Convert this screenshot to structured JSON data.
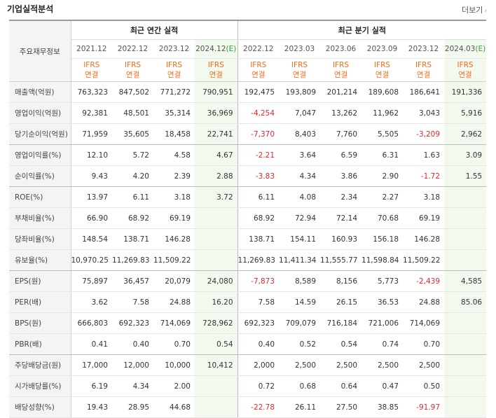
{
  "header": {
    "title": "기업실적분석",
    "more_label": "더보기",
    "more_icon": "chevron-right-icon"
  },
  "table": {
    "corner_label": "주요재무정보",
    "annual_group_label": "최근 연간 실적",
    "quarter_group_label": "최근 분기 실적",
    "annual_periods": [
      "2021.12",
      "2022.12",
      "2023.12",
      "2024.12"
    ],
    "annual_est_marker": "(E)",
    "quarter_periods": [
      "2022.12",
      "2023.03",
      "2023.06",
      "2023.09",
      "2023.12",
      "2024.03"
    ],
    "quarter_est_marker": "(E)",
    "std_line1": "IFRS",
    "std_line2": "연결",
    "rows": [
      {
        "label": "매출액(억원)",
        "values": [
          "763,323",
          "847,502",
          "771,272",
          "790,951",
          "192,475",
          "193,809",
          "201,214",
          "189,608",
          "186,641",
          "191,336"
        ]
      },
      {
        "label": "영업이익(억원)",
        "values": [
          "92,381",
          "48,501",
          "35,314",
          "36,969",
          "-4,254",
          "7,047",
          "13,262",
          "11,962",
          "3,043",
          "5,916"
        ]
      },
      {
        "label": "당기순이익(억원)",
        "values": [
          "71,959",
          "35,605",
          "18,458",
          "22,741",
          "-7,370",
          "8,403",
          "7,760",
          "5,505",
          "-3,209",
          "2,962"
        ]
      },
      {
        "label": "영업이익률(%)",
        "values": [
          "12.10",
          "5.72",
          "4.58",
          "4.67",
          "-2.21",
          "3.64",
          "6.59",
          "6.31",
          "1.63",
          "3.09"
        ]
      },
      {
        "label": "순이익률(%)",
        "values": [
          "9.43",
          "4.20",
          "2.39",
          "2.88",
          "-3.83",
          "4.34",
          "3.86",
          "2.90",
          "-1.72",
          "1.55"
        ]
      },
      {
        "label": "ROE(%)",
        "values": [
          "13.97",
          "6.11",
          "3.18",
          "3.72",
          "6.11",
          "4.08",
          "2.34",
          "2.27",
          "3.18",
          ""
        ]
      },
      {
        "label": "부채비율(%)",
        "values": [
          "66.90",
          "68.92",
          "69.19",
          "",
          "68.92",
          "72.94",
          "72.14",
          "70.68",
          "69.19",
          ""
        ]
      },
      {
        "label": "당좌비율(%)",
        "values": [
          "148.54",
          "138.71",
          "146.28",
          "",
          "138.71",
          "154.11",
          "160.93",
          "156.18",
          "146.28",
          ""
        ]
      },
      {
        "label": "유보율(%)",
        "values": [
          "10,970.25",
          "11,269.83",
          "11,509.22",
          "",
          "11,269.83",
          "11,411.34",
          "11,555.77",
          "11,598.84",
          "11,509.22",
          ""
        ]
      },
      {
        "label": "EPS(원)",
        "values": [
          "75,897",
          "36,457",
          "20,079",
          "24,080",
          "-7,873",
          "8,589",
          "8,156",
          "5,773",
          "-2,439",
          "4,585"
        ]
      },
      {
        "label": "PER(배)",
        "values": [
          "3.62",
          "7.58",
          "24.88",
          "16.20",
          "7.58",
          "14.59",
          "26.15",
          "36.53",
          "24.88",
          "85.06"
        ]
      },
      {
        "label": "BPS(원)",
        "values": [
          "666,803",
          "692,323",
          "714,069",
          "728,962",
          "692,323",
          "709,079",
          "716,184",
          "721,006",
          "714,069",
          ""
        ]
      },
      {
        "label": "PBR(배)",
        "values": [
          "0.41",
          "0.40",
          "0.70",
          "0.54",
          "0.40",
          "0.52",
          "0.54",
          "0.74",
          "0.70",
          ""
        ]
      },
      {
        "label": "주당배당금(원)",
        "values": [
          "17,000",
          "12,000",
          "10,000",
          "10,412",
          "2,000",
          "2,500",
          "2,500",
          "2,500",
          "2,500",
          ""
        ]
      },
      {
        "label": "시가배당률(%)",
        "values": [
          "6.19",
          "4.34",
          "2.00",
          "",
          "0.72",
          "0.68",
          "0.64",
          "0.47",
          "0.50",
          ""
        ]
      },
      {
        "label": "배당성향(%)",
        "values": [
          "19.43",
          "28.95",
          "44.68",
          "",
          "-22.78",
          "26.11",
          "27.50",
          "38.85",
          "-91.97",
          ""
        ]
      }
    ]
  },
  "colors": {
    "negative": "#e0282a",
    "standard": "#f26c1a",
    "estimate_bg": "#f2f9ee",
    "estimate_marker": "#3a9b3a"
  }
}
